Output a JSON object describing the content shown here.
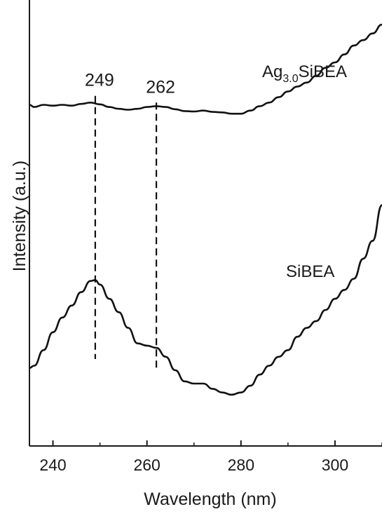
{
  "chart_data": {
    "type": "line",
    "title": "",
    "xlabel": "Wavelength (nm)",
    "ylabel": "Intensity (a.u.)",
    "xlim": [
      235,
      310
    ],
    "y_ticks_shown": false,
    "grid": false,
    "legend": "none",
    "x_ticks": [
      240,
      260,
      280,
      300
    ],
    "x_tick_labels": [
      "240",
      "260",
      "280",
      "300"
    ],
    "series": [
      {
        "name": "Ag3.0SiBEA",
        "label_main": "Ag",
        "label_sub": "3.0",
        "label_rest": "SiBEA",
        "x": [
          235,
          236,
          238,
          240,
          242,
          244,
          246,
          248,
          250,
          252,
          254,
          256,
          258,
          260,
          262,
          264,
          266,
          268,
          270,
          272,
          274,
          276,
          278,
          280,
          282,
          284,
          286,
          288,
          290,
          292,
          294,
          296,
          298,
          300,
          302,
          304,
          306,
          308,
          310
        ],
        "y": [
          0.765,
          0.76,
          0.765,
          0.763,
          0.765,
          0.763,
          0.767,
          0.77,
          0.766,
          0.76,
          0.756,
          0.754,
          0.756,
          0.76,
          0.762,
          0.76,
          0.755,
          0.751,
          0.75,
          0.752,
          0.749,
          0.748,
          0.745,
          0.745,
          0.752,
          0.762,
          0.77,
          0.782,
          0.795,
          0.806,
          0.815,
          0.83,
          0.848,
          0.86,
          0.878,
          0.898,
          0.91,
          0.925,
          0.945
        ]
      },
      {
        "name": "SiBEA",
        "x": [
          235,
          236,
          238,
          240,
          242,
          244,
          246,
          248,
          249,
          250,
          252,
          254,
          256,
          258,
          260,
          262,
          264,
          266,
          268,
          270,
          272,
          274,
          276,
          278,
          280,
          282,
          284,
          286,
          288,
          290,
          292,
          294,
          296,
          298,
          300,
          302,
          304,
          306,
          308,
          310
        ],
        "y": [
          0.175,
          0.18,
          0.215,
          0.255,
          0.288,
          0.315,
          0.345,
          0.37,
          0.372,
          0.362,
          0.33,
          0.3,
          0.265,
          0.23,
          0.225,
          0.22,
          0.2,
          0.17,
          0.145,
          0.14,
          0.14,
          0.128,
          0.12,
          0.115,
          0.12,
          0.135,
          0.16,
          0.18,
          0.2,
          0.215,
          0.245,
          0.265,
          0.28,
          0.305,
          0.33,
          0.35,
          0.375,
          0.42,
          0.46,
          0.54
        ]
      }
    ],
    "annotations": [
      {
        "x": 249,
        "label": "249",
        "y_from": 0.195,
        "y_to": 0.785
      },
      {
        "x": 262,
        "label": "262",
        "y_from": 0.175,
        "y_to": 0.77
      }
    ]
  }
}
